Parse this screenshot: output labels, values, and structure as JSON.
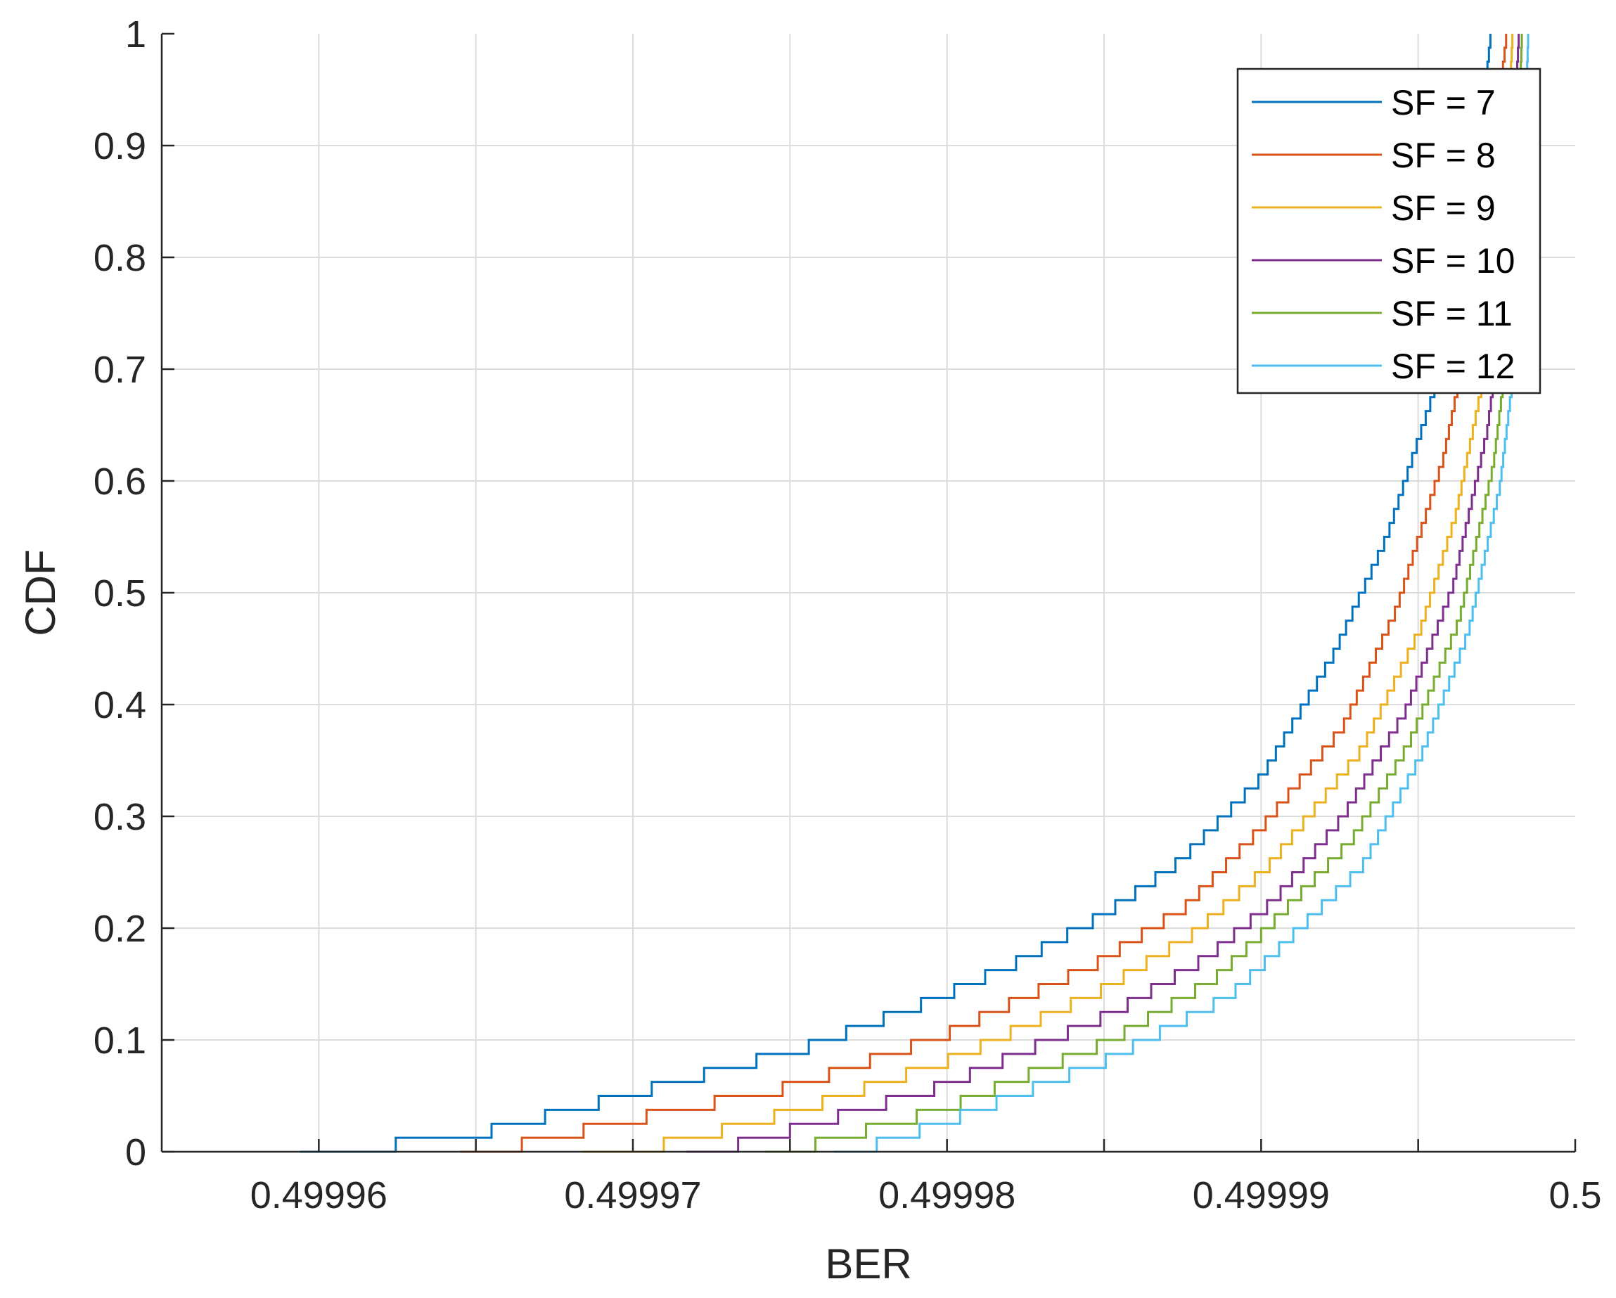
{
  "chart_data": {
    "type": "line",
    "title": "",
    "xlabel": "BER",
    "ylabel": "CDF",
    "xlim": [
      0.499955,
      0.5
    ],
    "ylim": [
      0,
      1
    ],
    "xticks": [
      0.49996,
      0.49997,
      0.49998,
      0.49999,
      0.5
    ],
    "xtick_labels": [
      "0.49996",
      "0.49997",
      "0.49998",
      "0.49999",
      "0.5"
    ],
    "xminor_ticks": [
      0.499965,
      0.499975,
      0.499985,
      0.499995
    ],
    "yticks": [
      0,
      0.1,
      0.2,
      0.3,
      0.4,
      0.5,
      0.6,
      0.7,
      0.8,
      0.9,
      1
    ],
    "ytick_labels": [
      "0",
      "0.1",
      "0.2",
      "0.3",
      "0.4",
      "0.5",
      "0.6",
      "0.7",
      "0.8",
      "0.9",
      "1"
    ],
    "grid": true,
    "legend_position": "top-right",
    "step_count": 80,
    "series": [
      {
        "name": "SF = 7",
        "color": "#0072BD",
        "points": [
          [
            0.4999594,
            0
          ],
          [
            0.4999655,
            0.025
          ],
          [
            0.49997,
            0.058
          ],
          [
            0.4999756,
            0.1
          ],
          [
            0.4999796,
            0.142
          ],
          [
            0.4999822,
            0.175
          ],
          [
            0.499985,
            0.218
          ],
          [
            0.4999874,
            0.265
          ],
          [
            0.49999,
            0.34
          ],
          [
            0.4999923,
            0.45
          ],
          [
            0.499994,
            0.555
          ],
          [
            0.4999955,
            0.685
          ],
          [
            0.4999963,
            0.8
          ],
          [
            0.499997,
            0.92
          ],
          [
            0.4999973,
            1
          ]
        ]
      },
      {
        "name": "SF = 8",
        "color": "#D95319",
        "points": [
          [
            0.4999645,
            0
          ],
          [
            0.49997,
            0.035
          ],
          [
            0.4999752,
            0.065
          ],
          [
            0.4999799,
            0.11
          ],
          [
            0.4999848,
            0.175
          ],
          [
            0.4999876,
            0.225
          ],
          [
            0.49999,
            0.295
          ],
          [
            0.4999926,
            0.385
          ],
          [
            0.4999943,
            0.49
          ],
          [
            0.4999958,
            0.625
          ],
          [
            0.4999967,
            0.75
          ],
          [
            0.4999974,
            0.9
          ],
          [
            0.4999978,
            1
          ]
        ]
      },
      {
        "name": "SF = 9",
        "color": "#EDB120",
        "points": [
          [
            0.4999684,
            0
          ],
          [
            0.4999715,
            0.015
          ],
          [
            0.4999755,
            0.045
          ],
          [
            0.4999803,
            0.09
          ],
          [
            0.4999849,
            0.15
          ],
          [
            0.4999878,
            0.2
          ],
          [
            0.4999902,
            0.26
          ],
          [
            0.4999932,
            0.365
          ],
          [
            0.4999951,
            0.475
          ],
          [
            0.4999962,
            0.575
          ],
          [
            0.4999971,
            0.7
          ],
          [
            0.4999977,
            0.83
          ],
          [
            0.499998,
            1
          ]
        ]
      },
      {
        "name": "SF = 10",
        "color": "#7E2F8E",
        "points": [
          [
            0.4999717,
            0
          ],
          [
            0.499975,
            0.025
          ],
          [
            0.4999799,
            0.065
          ],
          [
            0.4999853,
            0.13
          ],
          [
            0.4999883,
            0.18
          ],
          [
            0.4999904,
            0.23
          ],
          [
            0.4999926,
            0.305
          ],
          [
            0.4999946,
            0.4
          ],
          [
            0.4999961,
            0.51
          ],
          [
            0.4999972,
            0.65
          ],
          [
            0.4999978,
            0.78
          ],
          [
            0.4999982,
            1
          ]
        ]
      },
      {
        "name": "SF = 11",
        "color": "#77AC30",
        "points": [
          [
            0.4999742,
            0
          ],
          [
            0.49998,
            0.045
          ],
          [
            0.4999852,
            0.105
          ],
          [
            0.4999885,
            0.16
          ],
          [
            0.49999,
            0.2
          ],
          [
            0.4999929,
            0.285
          ],
          [
            0.4999947,
            0.37
          ],
          [
            0.4999963,
            0.48
          ],
          [
            0.4999974,
            0.62
          ],
          [
            0.499998,
            0.76
          ],
          [
            0.4999983,
            1
          ]
        ]
      },
      {
        "name": "SF = 12",
        "color": "#4DBEEE",
        "points": [
          [
            0.4999764,
            0
          ],
          [
            0.49998,
            0.033
          ],
          [
            0.4999851,
            0.088
          ],
          [
            0.499989,
            0.145
          ],
          [
            0.4999903,
            0.18
          ],
          [
            0.4999932,
            0.26
          ],
          [
            0.4999951,
            0.36
          ],
          [
            0.4999966,
            0.47
          ],
          [
            0.4999976,
            0.6
          ],
          [
            0.4999982,
            0.74
          ],
          [
            0.4999985,
            1
          ]
        ]
      }
    ]
  }
}
